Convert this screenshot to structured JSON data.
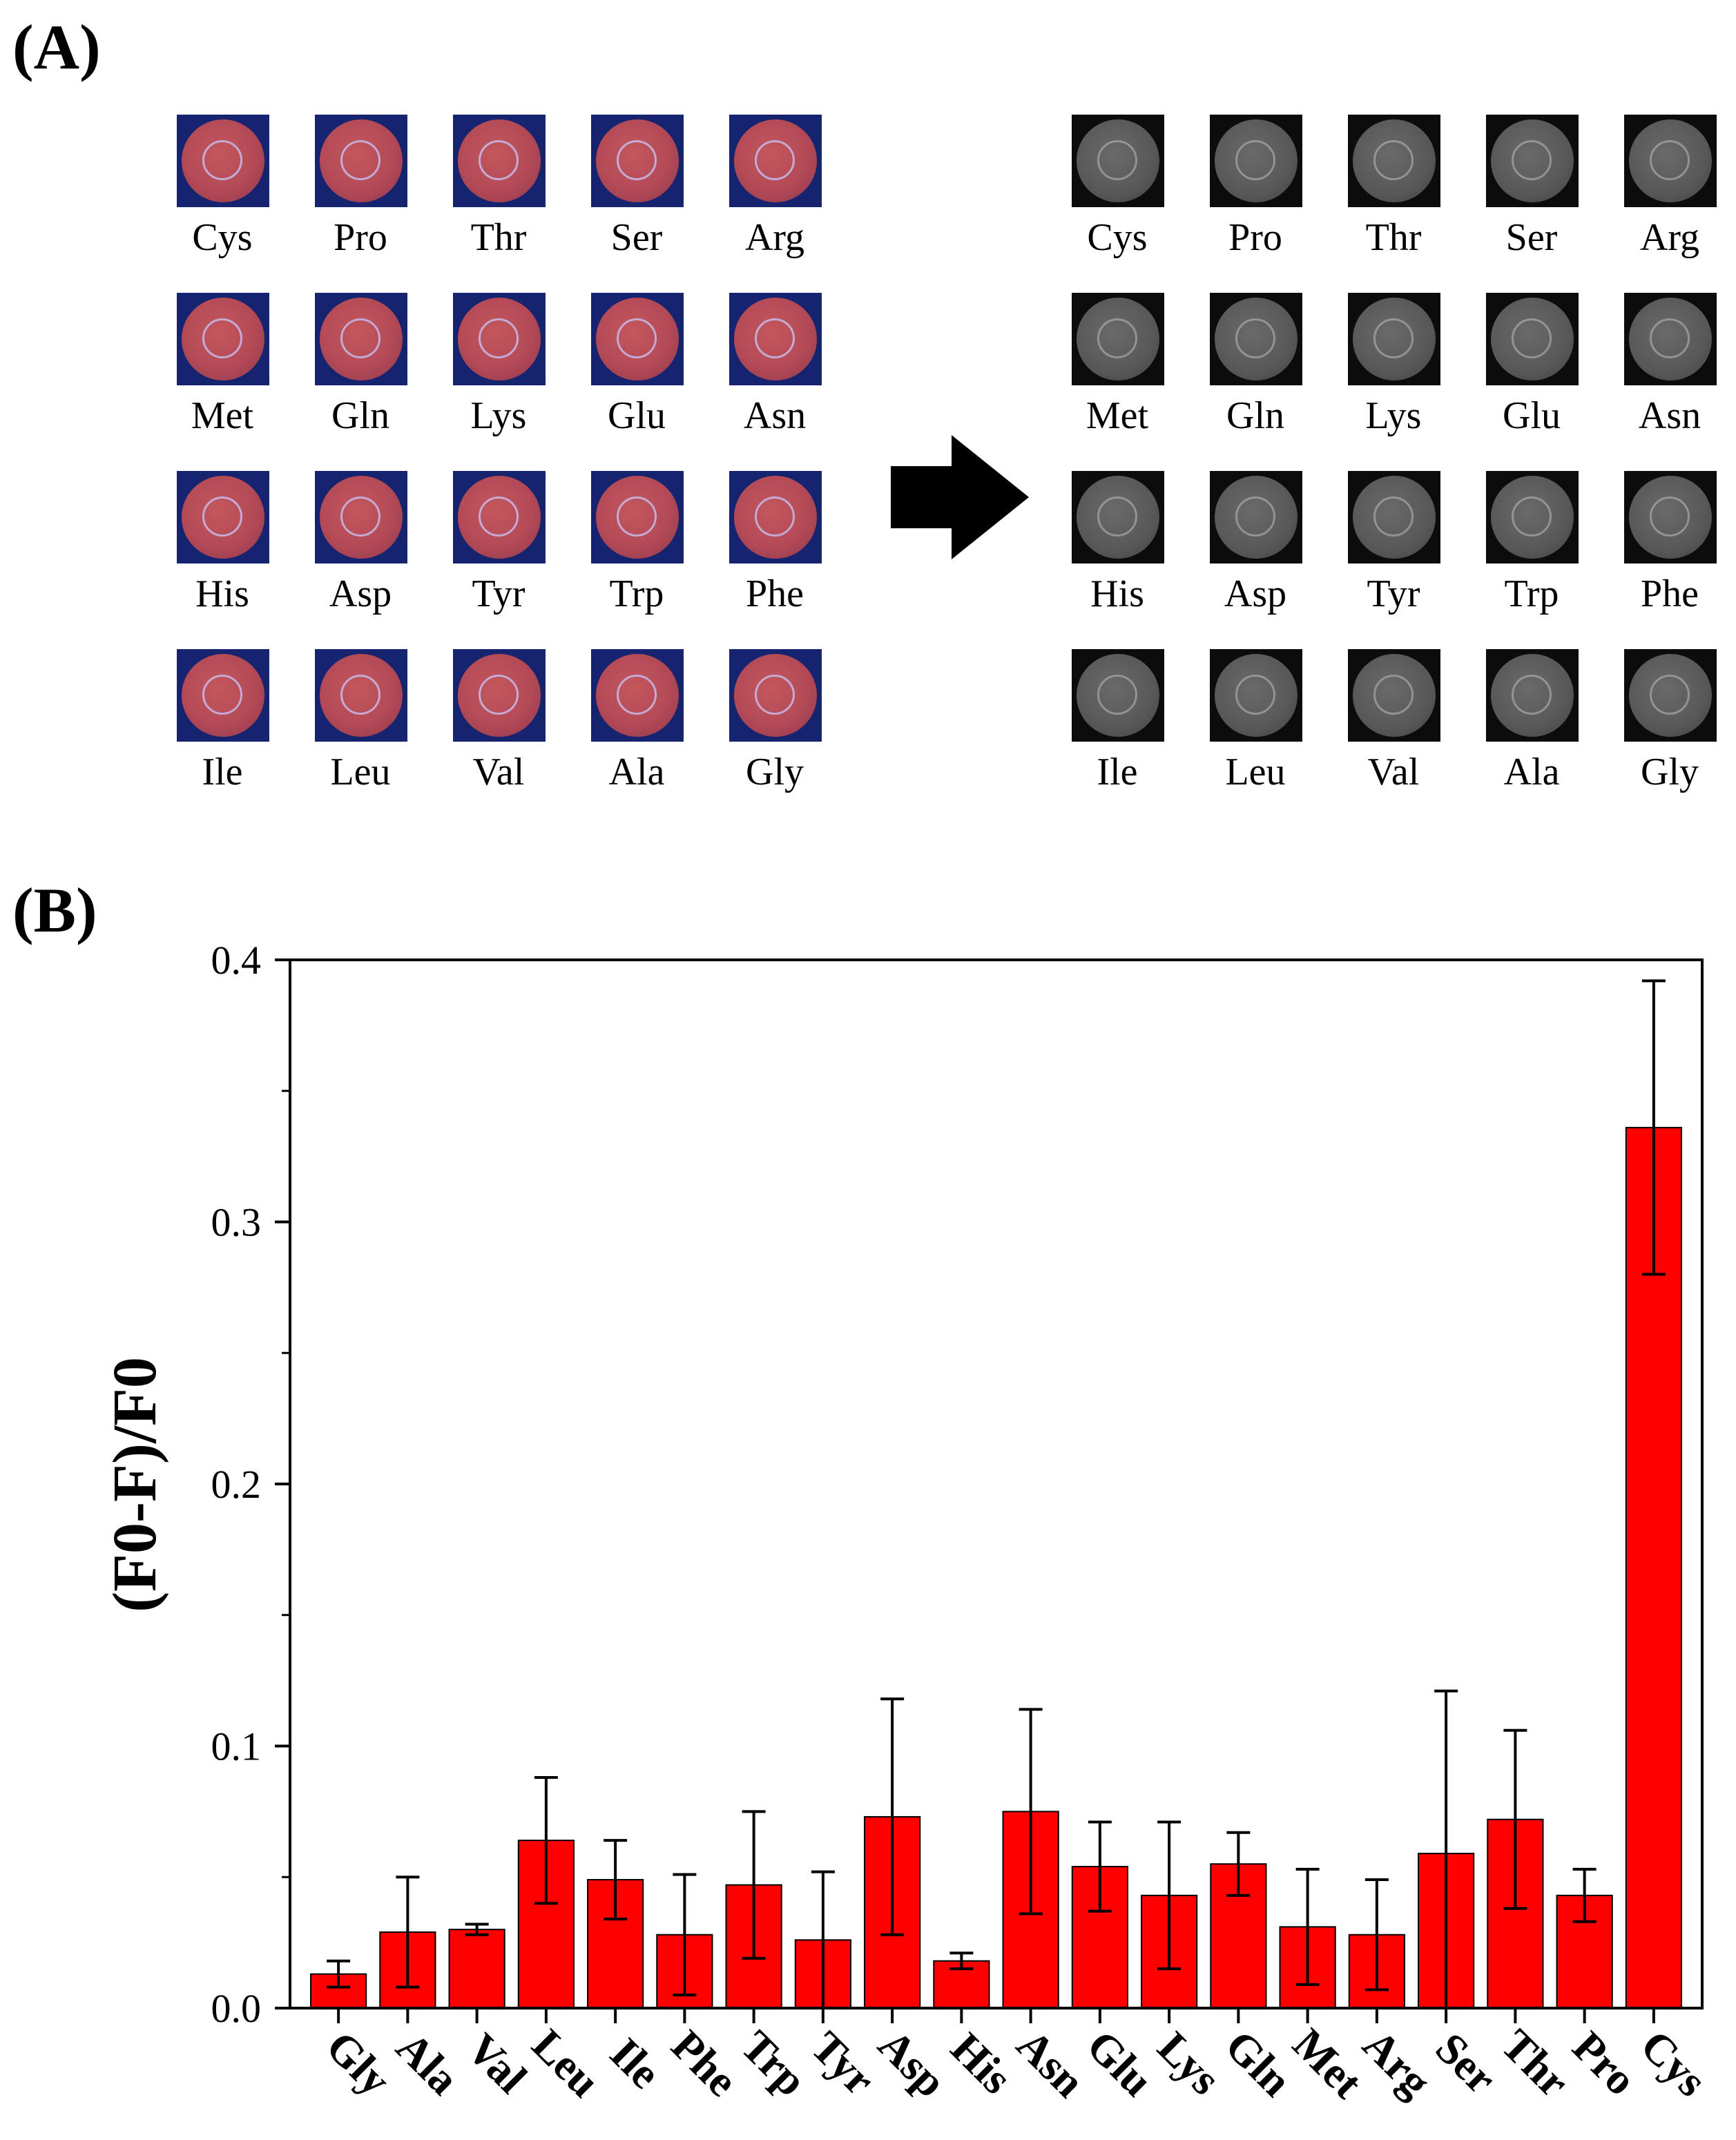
{
  "panels": {
    "a_label": "(A)",
    "b_label": "(B)"
  },
  "grid": {
    "rows": [
      [
        "Cys",
        "Pro",
        "Thr",
        "Ser",
        "Arg"
      ],
      [
        "Met",
        "Gln",
        "Lys",
        "Glu",
        "Asn"
      ],
      [
        "His",
        "Asp",
        "Tyr",
        "Trp",
        "Phe"
      ],
      [
        "Ile",
        "Leu",
        "Val",
        "Ala",
        "Gly"
      ]
    ],
    "left_style": "color",
    "right_style": "gray"
  },
  "arrow": {
    "icon": "right-arrow-icon"
  },
  "chart_data": {
    "type": "bar",
    "title": "",
    "xlabel": "",
    "ylabel": "(F0-F)/F0",
    "ylim": [
      0.0,
      0.4
    ],
    "yticks": [
      "0.0",
      "0.1",
      "0.2",
      "0.3",
      "0.4"
    ],
    "categories": [
      "Gly",
      "Ala",
      "Val",
      "Leu",
      "Ile",
      "Phe",
      "Trp",
      "Tyr",
      "Asp",
      "His",
      "Asn",
      "Glu",
      "Lys",
      "Gln",
      "Met",
      "Arg",
      "Ser",
      "Thr",
      "Pro",
      "Cys"
    ],
    "values": [
      0.013,
      0.029,
      0.03,
      0.064,
      0.049,
      0.028,
      0.047,
      0.026,
      0.073,
      0.018,
      0.075,
      0.054,
      0.043,
      0.055,
      0.031,
      0.028,
      0.059,
      0.072,
      0.043,
      0.336
    ],
    "errors": [
      0.005,
      0.021,
      0.002,
      0.024,
      0.015,
      0.023,
      0.028,
      0.026,
      0.045,
      0.003,
      0.039,
      0.017,
      0.028,
      0.012,
      0.022,
      0.021,
      0.062,
      0.034,
      0.01,
      0.056
    ],
    "bar_color": "#ff0000"
  }
}
